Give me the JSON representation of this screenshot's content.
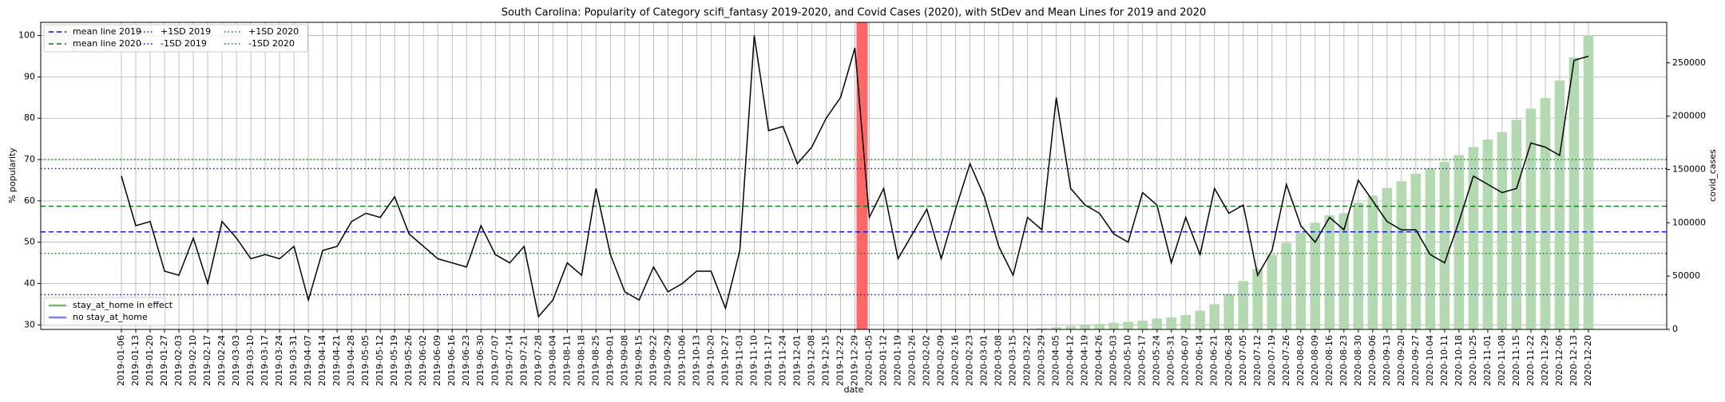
{
  "chart_data": {
    "type": "line",
    "title": "South Carolina: Popularity of Category scifi_fantasy 2019-2020, and Covid Cases (2020), with StDev and Mean Lines for 2019 and 2020",
    "x_label": "date",
    "y_label": "% popularity",
    "y2_label": "covid_cases",
    "categories": [
      "2019-01-06",
      "2019-01-13",
      "2019-01-20",
      "2019-01-27",
      "2019-02-03",
      "2019-02-10",
      "2019-02-17",
      "2019-02-24",
      "2019-03-03",
      "2019-03-10",
      "2019-03-17",
      "2019-03-24",
      "2019-03-31",
      "2019-04-07",
      "2019-04-14",
      "2019-04-21",
      "2019-04-28",
      "2019-05-05",
      "2019-05-12",
      "2019-05-19",
      "2019-05-26",
      "2019-06-02",
      "2019-06-09",
      "2019-06-16",
      "2019-06-23",
      "2019-06-30",
      "2019-07-07",
      "2019-07-14",
      "2019-07-21",
      "2019-07-28",
      "2019-08-04",
      "2019-08-11",
      "2019-08-18",
      "2019-08-25",
      "2019-09-01",
      "2019-09-08",
      "2019-09-15",
      "2019-09-22",
      "2019-09-29",
      "2019-10-06",
      "2019-10-13",
      "2019-10-20",
      "2019-10-27",
      "2019-11-03",
      "2019-11-10",
      "2019-11-17",
      "2019-11-24",
      "2019-12-01",
      "2019-12-08",
      "2019-12-15",
      "2019-12-22",
      "2019-12-29",
      "2020-01-05",
      "2020-01-12",
      "2020-01-19",
      "2020-01-26",
      "2020-02-02",
      "2020-02-09",
      "2020-02-16",
      "2020-02-23",
      "2020-03-01",
      "2020-03-08",
      "2020-03-15",
      "2020-03-22",
      "2020-03-29",
      "2020-04-05",
      "2020-04-12",
      "2020-04-19",
      "2020-04-26",
      "2020-05-03",
      "2020-05-10",
      "2020-05-17",
      "2020-05-24",
      "2020-05-31",
      "2020-06-07",
      "2020-06-14",
      "2020-06-21",
      "2020-06-28",
      "2020-07-05",
      "2020-07-12",
      "2020-07-19",
      "2020-07-26",
      "2020-08-02",
      "2020-08-09",
      "2020-08-16",
      "2020-08-23",
      "2020-08-30",
      "2020-09-06",
      "2020-09-13",
      "2020-09-20",
      "2020-09-27",
      "2020-10-04",
      "2020-10-11",
      "2020-10-18",
      "2020-10-25",
      "2020-11-01",
      "2020-11-08",
      "2020-11-15",
      "2020-11-22",
      "2020-11-29",
      "2020-12-06",
      "2020-12-13",
      "2020-12-20"
    ],
    "series": [
      {
        "color": "#000000",
        "values": [
          66,
          54,
          55,
          43,
          42,
          51,
          40,
          55,
          51,
          46,
          47,
          46,
          49,
          36,
          48,
          49,
          55,
          57,
          56,
          61,
          52,
          49,
          46,
          45,
          44,
          54,
          47,
          45,
          49,
          32,
          36,
          45,
          42,
          63,
          47,
          38,
          36,
          44,
          38,
          40,
          43,
          43,
          34,
          48,
          100,
          77,
          78,
          69,
          73,
          80,
          85,
          97,
          56,
          63,
          46,
          52,
          58,
          46,
          58,
          69,
          61,
          49,
          42,
          56,
          53,
          85,
          63,
          59,
          57,
          52,
          50,
          62,
          59,
          45,
          56,
          47,
          63,
          57,
          59,
          42,
          48,
          64,
          54,
          50,
          56,
          53,
          65,
          60,
          55,
          53,
          53,
          47,
          45,
          55,
          66,
          64,
          62,
          63,
          74,
          73,
          71,
          94,
          95
        ]
      },
      {
        "type": "bar",
        "axis": "y2",
        "color": "#b3d9b0",
        "values": [
          null,
          null,
          null,
          null,
          null,
          null,
          null,
          null,
          null,
          null,
          null,
          null,
          null,
          null,
          null,
          null,
          null,
          null,
          null,
          null,
          null,
          null,
          null,
          null,
          null,
          null,
          null,
          null,
          null,
          null,
          null,
          null,
          null,
          null,
          null,
          null,
          null,
          null,
          null,
          null,
          null,
          null,
          null,
          null,
          null,
          null,
          null,
          null,
          null,
          null,
          null,
          null,
          null,
          null,
          null,
          null,
          null,
          null,
          null,
          null,
          null,
          null,
          null,
          null,
          1000,
          2000,
          3100,
          4100,
          5100,
          6200,
          7200,
          8200,
          10300,
          11300,
          13400,
          17500,
          23700,
          33000,
          45300,
          56600,
          70000,
          81000,
          90500,
          100000,
          107000,
          109000,
          119000,
          125500,
          132700,
          139000,
          146000,
          151000,
          157000,
          163500,
          171000,
          178000,
          185000,
          196500,
          207000,
          217000,
          233500,
          255000,
          276000
        ]
      }
    ],
    "reference_lines": [
      {
        "name": "mean line 2019",
        "value": 52.5,
        "color": "#0000ff",
        "style": "dashed"
      },
      {
        "name": "mean line 2020",
        "value": 58.7,
        "color": "#008000",
        "style": "dashed"
      },
      {
        "name": "+1SD 2019",
        "value": 67.8,
        "color": "#0000ff",
        "style": "dotted"
      },
      {
        "name": "-1SD 2019",
        "value": 37.3,
        "color": "#0000ff",
        "style": "dotted"
      },
      {
        "name": "+1SD 2020",
        "value": 70,
        "color": "#008000",
        "style": "dotted"
      },
      {
        "name": "-1SD 2020",
        "value": 47.3,
        "color": "#008000",
        "style": "dotted"
      }
    ],
    "legend": "upper left",
    "stay_at_home_legend": [
      {
        "label": "stay_at_home in effect",
        "color": "#2ca02c"
      },
      {
        "label": "no stay_at_home",
        "color": "#4444ff"
      }
    ],
    "highlight_color": "#ff6666",
    "ylim": [
      28.9,
      103.2
    ],
    "yticks": [
      30,
      40,
      50,
      60,
      70,
      80,
      90,
      100
    ],
    "y2lim": [
      0,
      288000
    ],
    "y2ticks": [
      0,
      50000,
      100000,
      150000,
      200000,
      250000
    ],
    "grid": true
  }
}
